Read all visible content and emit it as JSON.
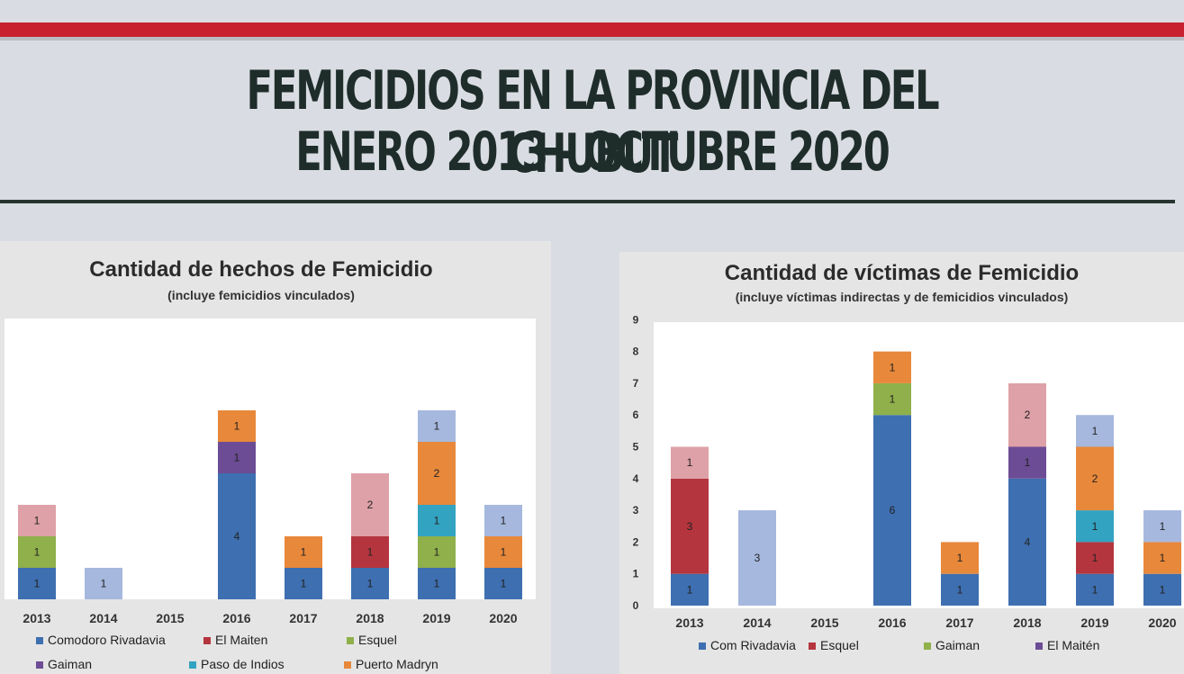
{
  "header": {
    "title_line1": "FEMICIDIOS EN LA PROVINCIA DEL CHUBUT",
    "title_line2": "ENERO 2013 - OCTUBRE 2020"
  },
  "colors": {
    "Comodoro Rivadavia": "#3e6fb0",
    "El Maiten": "#b5353e",
    "Esquel": "#8fb04a",
    "Gaiman": "#6c4c95",
    "Paso de Indios": "#33a3c2",
    "Puerto Madryn": "#e8883a",
    "Sarmiento": "#a6b8de",
    "Trelew": "#dea1a7"
  },
  "chart_data": [
    {
      "type": "bar",
      "stacked": true,
      "title": "Cantidad de hechos de Femicidio",
      "subtitle": "(incluye femicidios vinculados)",
      "categories": [
        "2013",
        "2014",
        "2015",
        "2016",
        "2017",
        "2018",
        "2019",
        "2020"
      ],
      "grid": false,
      "legend_position": "bottom",
      "series": [
        {
          "name": "Comodoro Rivadavia",
          "key": "Comodoro Rivadavia",
          "values": [
            1,
            0,
            0,
            4,
            1,
            1,
            1,
            1
          ]
        },
        {
          "name": "El Maiten",
          "key": "El Maiten",
          "values": [
            0,
            0,
            0,
            0,
            0,
            1,
            0,
            0
          ]
        },
        {
          "name": "Esquel",
          "key": "Esquel",
          "values": [
            1,
            0,
            0,
            0,
            0,
            0,
            1,
            0
          ]
        },
        {
          "name": "Gaiman",
          "key": "Gaiman",
          "values": [
            0,
            0,
            0,
            1,
            0,
            0,
            0,
            0
          ]
        },
        {
          "name": "Paso de Indios",
          "key": "Paso de Indios",
          "values": [
            0,
            0,
            0,
            0,
            0,
            0,
            1,
            0
          ]
        },
        {
          "name": "Puerto Madryn",
          "key": "Puerto Madryn",
          "values": [
            0,
            0,
            0,
            1,
            1,
            0,
            2,
            1
          ]
        },
        {
          "name": "",
          "key": "Sarmiento",
          "values": [
            0,
            1,
            0,
            0,
            0,
            0,
            1,
            1
          ]
        },
        {
          "name": "",
          "key": "Trelew",
          "values": [
            1,
            0,
            0,
            0,
            0,
            2,
            0,
            0
          ]
        }
      ],
      "ylim": [
        0,
        6
      ]
    },
    {
      "type": "bar",
      "stacked": true,
      "title": "Cantidad de víctimas de Femicidio",
      "subtitle": "(incluye víctimas indirectas y de femicidios vinculados)",
      "categories": [
        "2013",
        "2014",
        "2015",
        "2016",
        "2017",
        "2018",
        "2019",
        "2020"
      ],
      "yticks": [
        "0",
        "1",
        "2",
        "3",
        "4",
        "5",
        "6",
        "7",
        "8",
        "9"
      ],
      "grid": false,
      "legend_position": "bottom",
      "series": [
        {
          "name": "Com Rivadavia",
          "key": "Comodoro Rivadavia",
          "values": [
            1,
            0,
            0,
            6,
            1,
            4,
            1,
            1
          ]
        },
        {
          "name": "Esquel",
          "key": "El Maiten",
          "values": [
            3,
            0,
            0,
            0,
            0,
            0,
            1,
            0
          ]
        },
        {
          "name": "Gaiman",
          "key": "Esquel",
          "values": [
            0,
            0,
            0,
            1,
            0,
            0,
            0,
            0
          ]
        },
        {
          "name": "El Maitén",
          "key": "Gaiman",
          "values": [
            0,
            0,
            0,
            0,
            0,
            1,
            0,
            0
          ]
        },
        {
          "name": "",
          "key": "Paso de Indios",
          "values": [
            0,
            0,
            0,
            0,
            0,
            0,
            1,
            0
          ]
        },
        {
          "name": "",
          "key": "Puerto Madryn",
          "values": [
            0,
            0,
            0,
            1,
            1,
            0,
            2,
            1
          ]
        },
        {
          "name": "",
          "key": "Sarmiento",
          "values": [
            0,
            3,
            0,
            0,
            0,
            0,
            1,
            1
          ]
        },
        {
          "name": "",
          "key": "Trelew",
          "values": [
            1,
            0,
            0,
            0,
            0,
            2,
            0,
            0
          ]
        }
      ],
      "ylim": [
        0,
        9
      ]
    }
  ]
}
